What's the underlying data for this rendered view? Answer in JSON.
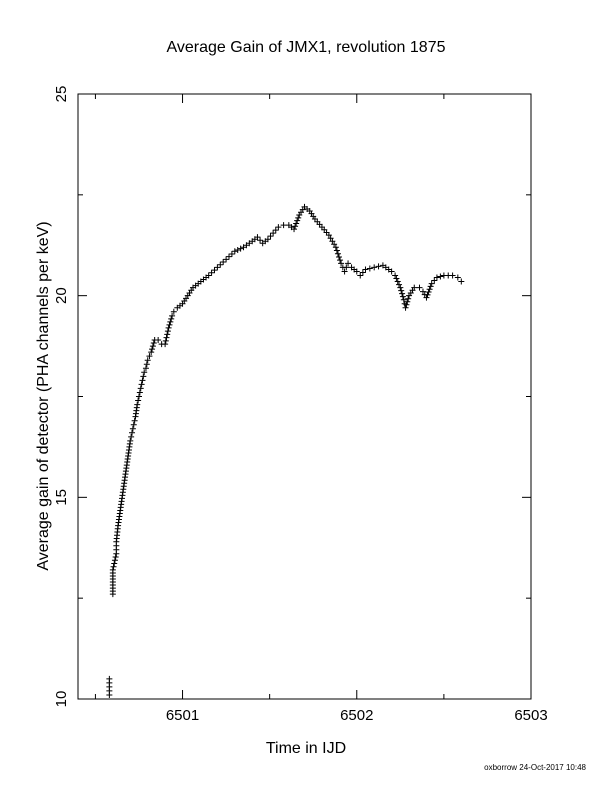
{
  "chart_data": {
    "type": "scatter",
    "title": "Average Gain of JMX1, revolution 1875",
    "xlabel": "Time in IJD",
    "ylabel": "Average gain of detector (PHA channels per keV)",
    "xlim": [
      6500.4,
      6503.0
    ],
    "ylim": [
      10,
      25
    ],
    "xticks": [
      6501,
      6502,
      6503
    ],
    "xtick_labels": [
      "6501",
      "6502",
      "6503"
    ],
    "yticks": [
      10,
      15,
      20,
      25
    ],
    "ytick_labels": [
      "10",
      "15",
      "20",
      "25"
    ],
    "marker": "plus",
    "color": "#000000",
    "grid": false,
    "series": [
      {
        "x": [
          6500.58,
          6500.58,
          6500.58,
          6500.6,
          6500.6,
          6500.6,
          6500.62,
          6500.62,
          6500.62,
          6500.63,
          6500.64,
          6500.65,
          6500.66,
          6500.67,
          6500.68,
          6500.69,
          6500.7,
          6500.71,
          6500.72,
          6500.73,
          6500.74,
          6500.75,
          6500.76,
          6500.77,
          6500.78,
          6500.79,
          6500.8,
          6500.82,
          6500.84,
          6500.86,
          6500.88,
          6500.9,
          6500.92,
          6500.94,
          6500.95,
          6500.97,
          6501.0,
          6501.03,
          6501.06,
          6501.09,
          6501.12,
          6501.15,
          6501.2,
          6501.25,
          6501.3,
          6501.35,
          6501.4,
          6501.43,
          6501.46,
          6501.49,
          6501.52,
          6501.55,
          6501.58,
          6501.61,
          6501.64,
          6501.67,
          6501.7,
          6501.73,
          6501.76,
          6501.8,
          6501.84,
          6501.88,
          6501.91,
          6501.93,
          6501.95,
          6501.97,
          6502.0,
          6502.02,
          6502.05,
          6502.1,
          6502.15,
          6502.2,
          6502.22,
          6502.25,
          6502.27,
          6502.28,
          6502.3,
          6502.33,
          6502.36,
          6502.38,
          6502.4,
          6502.43,
          6502.46,
          6502.5,
          6502.55,
          6502.58,
          6502.6
        ],
        "y": [
          10.1,
          10.3,
          10.5,
          12.6,
          12.9,
          13.2,
          13.6,
          13.8,
          13.9,
          14.3,
          14.6,
          14.9,
          15.2,
          15.5,
          15.8,
          16.1,
          16.4,
          16.6,
          16.8,
          17.0,
          17.3,
          17.5,
          17.7,
          17.9,
          18.1,
          18.2,
          18.4,
          18.6,
          18.9,
          18.9,
          18.8,
          18.8,
          19.2,
          19.5,
          19.6,
          19.7,
          19.8,
          20.0,
          20.2,
          20.3,
          20.4,
          20.5,
          20.7,
          20.9,
          21.1,
          21.2,
          21.35,
          21.45,
          21.3,
          21.4,
          21.55,
          21.7,
          21.75,
          21.75,
          21.65,
          22.0,
          22.2,
          22.1,
          21.9,
          21.7,
          21.5,
          21.2,
          20.8,
          20.6,
          20.8,
          20.7,
          20.6,
          20.5,
          20.65,
          20.7,
          20.75,
          20.6,
          20.5,
          20.2,
          19.9,
          19.7,
          20.0,
          20.2,
          20.2,
          20.1,
          19.95,
          20.3,
          20.45,
          20.5,
          20.5,
          20.45,
          20.35
        ]
      }
    ]
  },
  "footer": "oxborrow 24-Oct-2017 10:48"
}
